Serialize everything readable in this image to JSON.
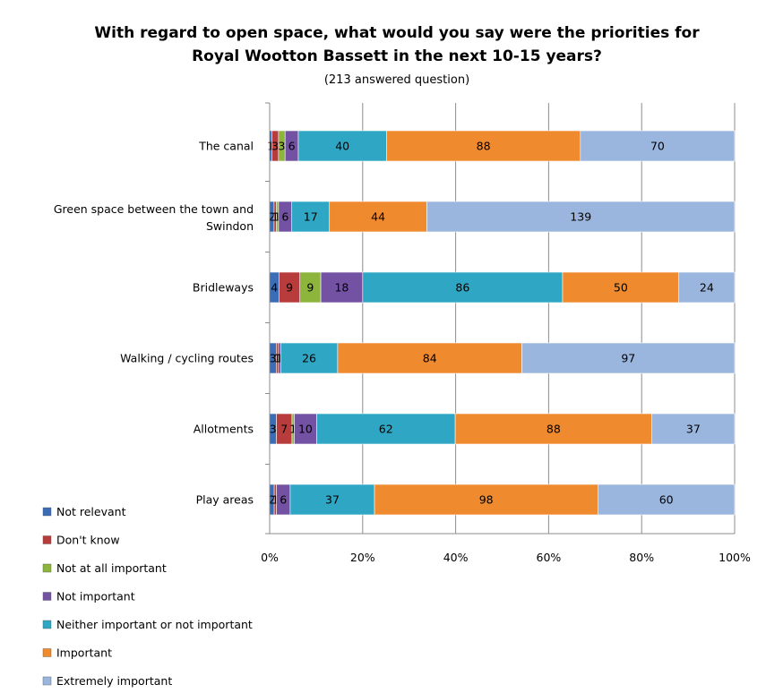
{
  "chart_data": {
    "type": "bar",
    "orientation": "horizontal",
    "stacked": "percent",
    "title_line1": "With regard to open space, what would you say were the priorities for",
    "title_line2": "Royal Wootton Bassett in the next 10-15 years?",
    "subtitle": "(213 answered question)",
    "categories": [
      [
        "The canal"
      ],
      [
        "Green space between the town and",
        "Swindon"
      ],
      [
        "Bridleways"
      ],
      [
        "Walking / cycling routes"
      ],
      [
        "Allotments"
      ],
      [
        "Play areas"
      ]
    ],
    "x_ticks": [
      "0%",
      "20%",
      "40%",
      "60%",
      "80%",
      "100%"
    ],
    "xlim": [
      0,
      100
    ],
    "grid": true,
    "legend_position": "bottom-left",
    "series": [
      {
        "name": "Not relevant",
        "color": "#3a6db5",
        "values": [
          1,
          2,
          4,
          3,
          3,
          2
        ]
      },
      {
        "name": "Don't know",
        "color": "#b83c3c",
        "values": [
          3,
          1,
          9,
          1,
          7,
          1
        ]
      },
      {
        "name": "Not at all important",
        "color": "#8db53c",
        "values": [
          3,
          1,
          9,
          0,
          1,
          0
        ]
      },
      {
        "name": "Not important",
        "color": "#7352a3",
        "values": [
          6,
          6,
          18,
          1,
          10,
          6
        ]
      },
      {
        "name": "Neither important or not important",
        "color": "#2fa7c4",
        "values": [
          40,
          17,
          86,
          26,
          62,
          37
        ]
      },
      {
        "name": "Important",
        "color": "#ef8a2f",
        "values": [
          88,
          44,
          50,
          84,
          88,
          98
        ]
      },
      {
        "name": "Extremely important",
        "color": "#9bb6de",
        "values": [
          70,
          139,
          24,
          97,
          37,
          60
        ]
      }
    ],
    "data_labels": [
      [
        "1",
        "3",
        "3",
        "6",
        "40",
        "88",
        "70"
      ],
      [
        "2",
        "1",
        "1",
        "6",
        "17",
        "44",
        "139"
      ],
      [
        "4",
        "9",
        "9",
        "18",
        "86",
        "50",
        "24"
      ],
      [
        "3",
        "1",
        "",
        "1",
        "26",
        "84",
        "97"
      ],
      [
        "3",
        "7",
        "1",
        "10",
        "62",
        "88",
        "37"
      ],
      [
        "2",
        "1",
        "",
        "6",
        "37",
        "98",
        "60"
      ]
    ]
  }
}
